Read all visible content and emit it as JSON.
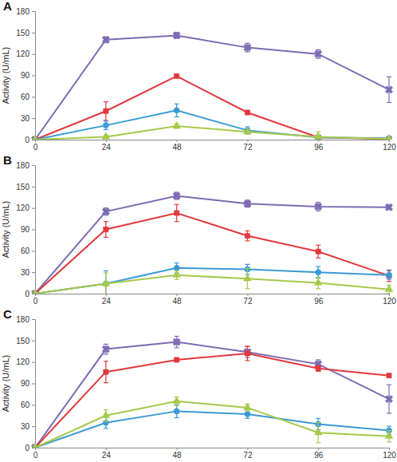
{
  "chart_data": [
    {
      "type": "line",
      "title": "A",
      "ylabel": "Activity (U/mL)",
      "x": [
        0,
        24,
        48,
        72,
        96,
        120
      ],
      "xlim": [
        0,
        120
      ],
      "xticks": [
        0,
        24,
        48,
        72,
        96,
        120
      ],
      "ylim": [
        0,
        180
      ],
      "yticks": [
        0,
        30,
        60,
        90,
        120,
        150,
        180
      ],
      "grid": false,
      "series": [
        {
          "color": "#7e6bb4",
          "marker": "x",
          "values": [
            0,
            140,
            146,
            129,
            120,
            70
          ],
          "errors": [
            0,
            4,
            4,
            6,
            6,
            18
          ]
        },
        {
          "color": "#e2393c",
          "marker": "square",
          "values": [
            0,
            40,
            89,
            38,
            3,
            1
          ],
          "errors": [
            0,
            13,
            2,
            2,
            3,
            1
          ]
        },
        {
          "color": "#3a9ad6",
          "marker": "circle",
          "values": [
            0,
            20,
            41,
            13,
            3,
            2
          ],
          "errors": [
            0,
            6,
            9,
            5,
            3,
            1
          ]
        },
        {
          "color": "#a6c94a",
          "marker": "triangle",
          "values": [
            0,
            4,
            19,
            11,
            4,
            1
          ],
          "errors": [
            0,
            2,
            3,
            3,
            7,
            1
          ]
        }
      ]
    },
    {
      "type": "line",
      "title": "B",
      "ylabel": "Activity (U/mL)",
      "x": [
        0,
        24,
        48,
        72,
        96,
        120
      ],
      "xlim": [
        0,
        120
      ],
      "xticks": [
        0,
        24,
        48,
        72,
        96,
        120
      ],
      "ylim": [
        0,
        180
      ],
      "yticks": [
        0,
        30,
        60,
        90,
        120,
        150,
        180
      ],
      "grid": false,
      "series": [
        {
          "color": "#7e6bb4",
          "marker": "x",
          "values": [
            0,
            115,
            137,
            126,
            122,
            121
          ],
          "errors": [
            0,
            5,
            5,
            5,
            6,
            3
          ]
        },
        {
          "color": "#e2393c",
          "marker": "square",
          "values": [
            0,
            90,
            113,
            81,
            59,
            25
          ],
          "errors": [
            0,
            11,
            12,
            7,
            9,
            8
          ]
        },
        {
          "color": "#3a9ad6",
          "marker": "circle",
          "values": [
            0,
            14,
            36,
            34,
            30,
            26
          ],
          "errors": [
            0,
            18,
            7,
            7,
            8,
            6
          ]
        },
        {
          "color": "#a6c94a",
          "marker": "triangle",
          "values": [
            0,
            14,
            26,
            21,
            15,
            6
          ],
          "errors": [
            0,
            15,
            6,
            14,
            8,
            6
          ]
        }
      ]
    },
    {
      "type": "line",
      "title": "C",
      "ylabel": "Activity (U/mL)",
      "x": [
        0,
        24,
        48,
        72,
        96,
        120
      ],
      "xlim": [
        0,
        120
      ],
      "xticks": [
        0,
        24,
        48,
        72,
        96,
        120
      ],
      "ylim": [
        0,
        180
      ],
      "yticks": [
        0,
        30,
        60,
        90,
        120,
        150,
        180
      ],
      "grid": false,
      "series": [
        {
          "color": "#7e6bb4",
          "marker": "x",
          "values": [
            0,
            138,
            148,
            134,
            117,
            68
          ],
          "errors": [
            0,
            7,
            8,
            8,
            6,
            20
          ]
        },
        {
          "color": "#e2393c",
          "marker": "square",
          "values": [
            0,
            106,
            123,
            132,
            111,
            101
          ],
          "errors": [
            0,
            15,
            2,
            10,
            4,
            2
          ]
        },
        {
          "color": "#3a9ad6",
          "marker": "circle",
          "values": [
            0,
            35,
            51,
            47,
            33,
            24
          ],
          "errors": [
            0,
            8,
            9,
            6,
            8,
            6
          ]
        },
        {
          "color": "#a6c94a",
          "marker": "triangle",
          "values": [
            0,
            45,
            65,
            56,
            21,
            16
          ],
          "errors": [
            0,
            8,
            6,
            5,
            14,
            8
          ]
        }
      ]
    }
  ]
}
